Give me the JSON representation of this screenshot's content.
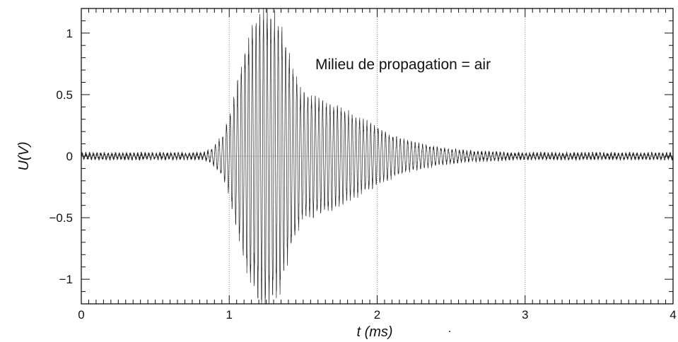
{
  "chart_data": {
    "type": "line",
    "title": "",
    "xlabel": "t (ms)",
    "ylabel": "U(V)",
    "xlim": [
      0,
      4
    ],
    "ylim": [
      -1.2,
      1.2
    ],
    "x_ticks": [
      0,
      1,
      2,
      3,
      4
    ],
    "x_tick_labels": [
      "0",
      "1",
      "2",
      "3",
      "4"
    ],
    "y_ticks": [
      1,
      0.5,
      0,
      -0.5,
      -1
    ],
    "y_tick_labels": [
      "1",
      "0.5",
      "0",
      "−0.5",
      "−1"
    ],
    "vertical_gridlines_at": [
      1,
      2,
      3
    ],
    "grid": "vertical dotted",
    "annotation": "Milieu de propagation = air",
    "series": [
      {
        "color": "#222222",
        "envelope": {
          "t": [
            0.0,
            0.82,
            0.88,
            0.95,
            1.0,
            1.05,
            1.1,
            1.15,
            1.2,
            1.25,
            1.3,
            1.35,
            1.4,
            1.45,
            1.5,
            1.6,
            1.7,
            1.8,
            1.9,
            2.0,
            2.1,
            2.2,
            2.3,
            2.4,
            2.5,
            2.6,
            2.7,
            2.8,
            2.9,
            3.0,
            3.5,
            4.0
          ],
          "amplitude": [
            0.02,
            0.02,
            0.05,
            0.15,
            0.3,
            0.55,
            0.8,
            1.0,
            1.1,
            1.15,
            1.1,
            1.0,
            0.8,
            0.6,
            0.48,
            0.45,
            0.4,
            0.34,
            0.28,
            0.22,
            0.16,
            0.12,
            0.09,
            0.07,
            0.05,
            0.04,
            0.03,
            0.03,
            0.02,
            0.02,
            0.02,
            0.02
          ]
        },
        "carrier_frequency_khz": 40,
        "noise_floor": 0.015
      }
    ]
  },
  "stray_mark": "."
}
